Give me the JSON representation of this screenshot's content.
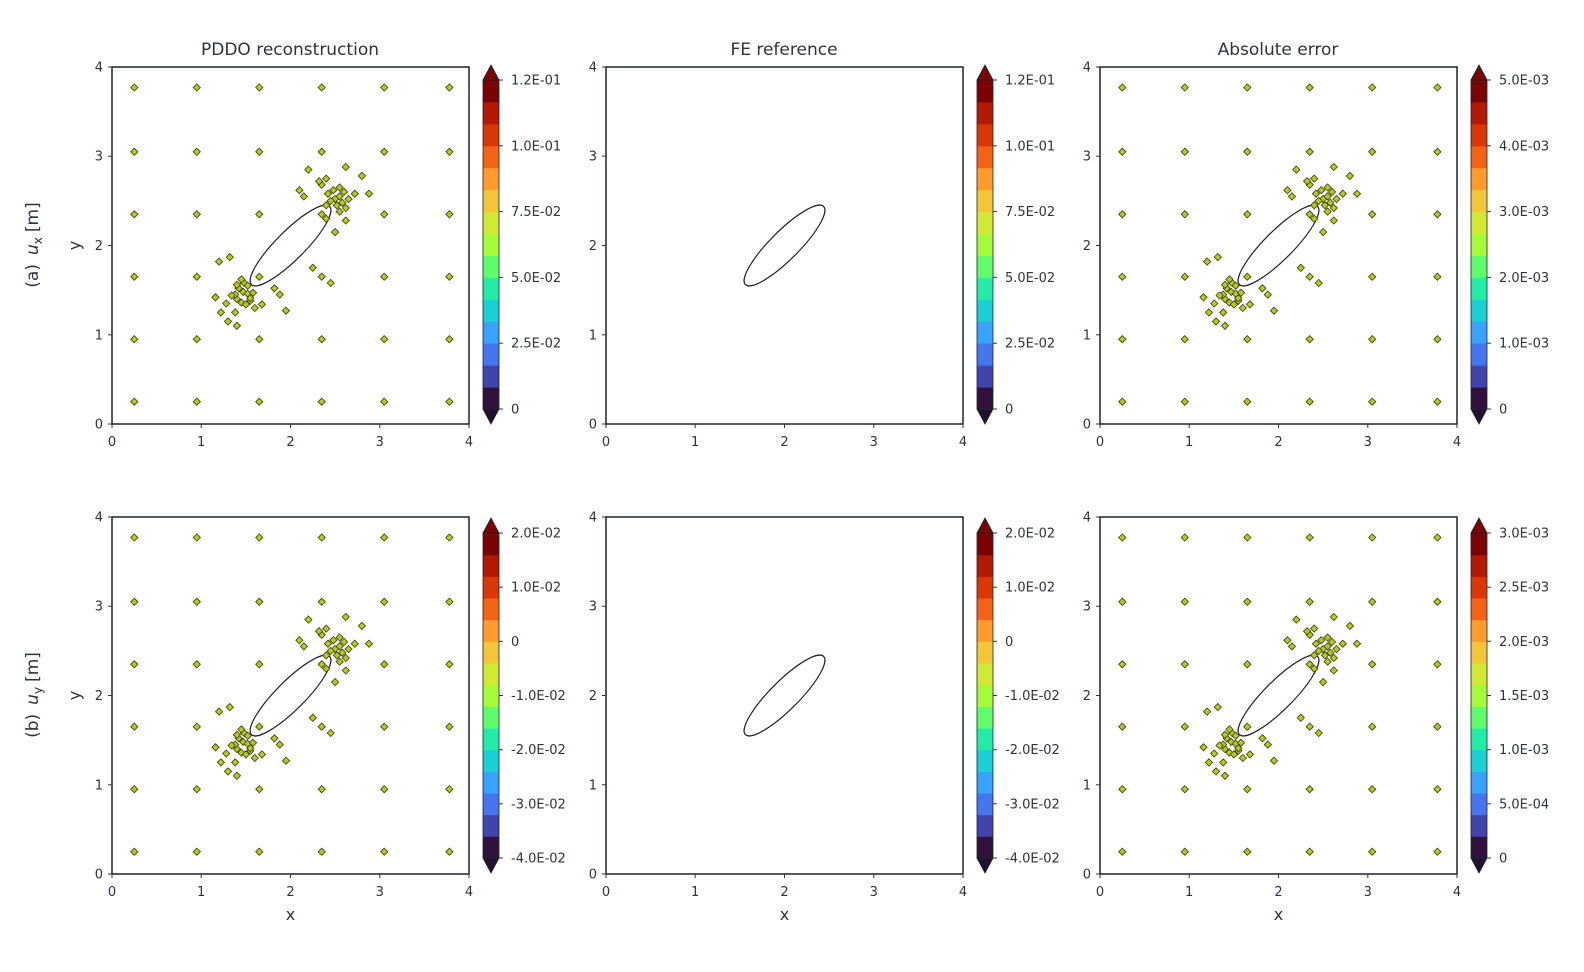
{
  "figure": {
    "column_titles": [
      "PDDO reconstruction",
      "FE reference",
      "Absolute error"
    ],
    "row_labels": [
      {
        "prefix": "(a)",
        "symbol": "u",
        "sub": "x",
        "unit": "[m]"
      },
      {
        "prefix": "(b)",
        "symbol": "u",
        "sub": "y",
        "unit": "[m]"
      }
    ],
    "xlabel": "x",
    "ylabel": "y",
    "colormap": [
      "#30123b",
      "#4145ab",
      "#4675ed",
      "#39a2fc",
      "#1bcfd4",
      "#24eca6",
      "#61fc6c",
      "#a4fc3b",
      "#d1e834",
      "#f3c63a",
      "#fe9b2d",
      "#f36315",
      "#d93806",
      "#b11901",
      "#7a0402"
    ]
  },
  "chart_data": [
    {
      "id": "ux-pddo",
      "type": "heatmap",
      "title": "PDDO reconstruction",
      "row_label": "(a) u_x [m]",
      "field": "ux",
      "xlim": [
        0,
        4
      ],
      "ylim": [
        0,
        4
      ],
      "xticks": [
        "0",
        "1",
        "2",
        "3",
        "4"
      ],
      "yticks": [
        "0",
        "1",
        "2",
        "3",
        "4"
      ],
      "xlabel": "",
      "ylabel": "y",
      "colorbar": {
        "min": 0,
        "max": 0.12,
        "ticks": [
          "0",
          "2.5E-02",
          "5.0E-02",
          "7.5E-02",
          "1.0E-01",
          "1.2E-01"
        ],
        "tick_values": [
          0,
          0.025,
          0.05,
          0.075,
          0.1,
          0.12
        ]
      },
      "hole": {
        "center": [
          2,
          2
        ],
        "semi_axes": [
          0.62,
          0.16
        ],
        "angle_deg": 45
      },
      "show_sensors": true
    },
    {
      "id": "ux-fe",
      "type": "heatmap",
      "title": "FE reference",
      "field": "ux",
      "xlim": [
        0,
        4
      ],
      "ylim": [
        0,
        4
      ],
      "xticks": [
        "0",
        "1",
        "2",
        "3",
        "4"
      ],
      "yticks": [
        "0",
        "1",
        "2",
        "3",
        "4"
      ],
      "xlabel": "",
      "ylabel": "",
      "colorbar": {
        "min": 0,
        "max": 0.12,
        "ticks": [
          "0",
          "2.5E-02",
          "5.0E-02",
          "7.5E-02",
          "1.0E-01",
          "1.2E-01"
        ],
        "tick_values": [
          0,
          0.025,
          0.05,
          0.075,
          0.1,
          0.12
        ]
      },
      "hole": {
        "center": [
          2,
          2
        ],
        "semi_axes": [
          0.62,
          0.16
        ],
        "angle_deg": 45
      },
      "show_sensors": false
    },
    {
      "id": "ux-err",
      "type": "heatmap",
      "title": "Absolute error",
      "field": "err1",
      "xlim": [
        0,
        4
      ],
      "ylim": [
        0,
        4
      ],
      "xticks": [
        "0",
        "1",
        "2",
        "3",
        "4"
      ],
      "yticks": [
        "0",
        "1",
        "2",
        "3",
        "4"
      ],
      "xlabel": "",
      "ylabel": "",
      "colorbar": {
        "min": 0,
        "max": 0.005,
        "ticks": [
          "0",
          "1.0E-03",
          "2.0E-03",
          "3.0E-03",
          "4.0E-03",
          "5.0E-03"
        ],
        "tick_values": [
          0,
          0.001,
          0.002,
          0.003,
          0.004,
          0.005
        ]
      },
      "hole": {
        "center": [
          2,
          2
        ],
        "semi_axes": [
          0.62,
          0.16
        ],
        "angle_deg": 45
      },
      "show_sensors": true
    },
    {
      "id": "uy-pddo",
      "type": "heatmap",
      "title": "",
      "row_label": "(b) u_y [m]",
      "field": "uy",
      "xlim": [
        0,
        4
      ],
      "ylim": [
        0,
        4
      ],
      "xticks": [
        "0",
        "1",
        "2",
        "3",
        "4"
      ],
      "yticks": [
        "0",
        "1",
        "2",
        "3",
        "4"
      ],
      "xlabel": "x",
      "ylabel": "y",
      "colorbar": {
        "min": -0.04,
        "max": 0.02,
        "ticks": [
          "-4.0E-02",
          "-3.0E-02",
          "-2.0E-02",
          "-1.0E-02",
          "0",
          "1.0E-02",
          "2.0E-02"
        ],
        "tick_values": [
          -0.04,
          -0.03,
          -0.02,
          -0.01,
          0,
          0.01,
          0.02
        ]
      },
      "hole": {
        "center": [
          2,
          2
        ],
        "semi_axes": [
          0.62,
          0.16
        ],
        "angle_deg": 45
      },
      "show_sensors": true
    },
    {
      "id": "uy-fe",
      "type": "heatmap",
      "title": "",
      "field": "uy",
      "xlim": [
        0,
        4
      ],
      "ylim": [
        0,
        4
      ],
      "xticks": [
        "0",
        "1",
        "2",
        "3",
        "4"
      ],
      "yticks": [
        "0",
        "1",
        "2",
        "3",
        "4"
      ],
      "xlabel": "x",
      "ylabel": "",
      "colorbar": {
        "min": -0.04,
        "max": 0.02,
        "ticks": [
          "-4.0E-02",
          "-3.0E-02",
          "-2.0E-02",
          "-1.0E-02",
          "0",
          "1.0E-02",
          "2.0E-02"
        ],
        "tick_values": [
          -0.04,
          -0.03,
          -0.02,
          -0.01,
          0,
          0.01,
          0.02
        ]
      },
      "hole": {
        "center": [
          2,
          2
        ],
        "semi_axes": [
          0.62,
          0.16
        ],
        "angle_deg": 45
      },
      "show_sensors": false
    },
    {
      "id": "uy-err",
      "type": "heatmap",
      "title": "",
      "field": "err2",
      "xlim": [
        0,
        4
      ],
      "ylim": [
        0,
        4
      ],
      "xticks": [
        "0",
        "1",
        "2",
        "3",
        "4"
      ],
      "yticks": [
        "0",
        "1",
        "2",
        "3",
        "4"
      ],
      "xlabel": "x",
      "ylabel": "",
      "colorbar": {
        "min": 0,
        "max": 0.003,
        "ticks": [
          "0",
          "5.0E-04",
          "1.0E-03",
          "1.5E-03",
          "2.0E-03",
          "2.5E-03",
          "3.0E-03"
        ],
        "tick_values": [
          0,
          0.0005,
          0.001,
          0.0015,
          0.002,
          0.0025,
          0.003
        ]
      },
      "hole": {
        "center": [
          2,
          2
        ],
        "semi_axes": [
          0.62,
          0.16
        ],
        "angle_deg": 45
      },
      "show_sensors": true
    }
  ],
  "sensors": [
    [
      0.25,
      0.25
    ],
    [
      0.95,
      0.25
    ],
    [
      1.65,
      0.25
    ],
    [
      2.35,
      0.25
    ],
    [
      3.05,
      0.25
    ],
    [
      3.78,
      0.25
    ],
    [
      0.25,
      0.95
    ],
    [
      0.95,
      0.95
    ],
    [
      1.65,
      0.95
    ],
    [
      2.35,
      0.95
    ],
    [
      3.05,
      0.95
    ],
    [
      3.78,
      0.95
    ],
    [
      0.25,
      1.65
    ],
    [
      0.95,
      1.65
    ],
    [
      1.65,
      1.65
    ],
    [
      2.35,
      1.65
    ],
    [
      3.05,
      1.65
    ],
    [
      3.78,
      1.65
    ],
    [
      0.25,
      2.35
    ],
    [
      0.95,
      2.35
    ],
    [
      1.65,
      2.35
    ],
    [
      2.35,
      2.35
    ],
    [
      3.05,
      2.35
    ],
    [
      3.78,
      2.35
    ],
    [
      0.25,
      3.05
    ],
    [
      0.95,
      3.05
    ],
    [
      1.65,
      3.05
    ],
    [
      2.35,
      3.05
    ],
    [
      3.05,
      3.05
    ],
    [
      3.78,
      3.05
    ],
    [
      0.25,
      3.77
    ],
    [
      0.95,
      3.77
    ],
    [
      1.65,
      3.77
    ],
    [
      2.35,
      3.77
    ],
    [
      3.05,
      3.77
    ],
    [
      3.78,
      3.77
    ],
    [
      1.42,
      1.52
    ],
    [
      1.47,
      1.48
    ],
    [
      1.52,
      1.46
    ],
    [
      1.58,
      1.47
    ],
    [
      1.48,
      1.58
    ],
    [
      1.45,
      1.62
    ],
    [
      1.4,
      1.4
    ],
    [
      1.38,
      1.45
    ],
    [
      1.34,
      1.44
    ],
    [
      1.45,
      1.36
    ],
    [
      1.5,
      1.34
    ],
    [
      1.55,
      1.38
    ],
    [
      1.6,
      1.3
    ],
    [
      1.28,
      1.35
    ],
    [
      1.38,
      1.25
    ],
    [
      1.22,
      1.25
    ],
    [
      1.16,
      1.42
    ],
    [
      1.2,
      1.82
    ],
    [
      1.32,
      1.87
    ],
    [
      1.55,
      1.41
    ],
    [
      1.68,
      1.34
    ],
    [
      1.82,
      1.52
    ],
    [
      1.88,
      1.45
    ],
    [
      1.95,
      1.27
    ],
    [
      1.3,
      1.15
    ],
    [
      1.4,
      1.1
    ],
    [
      1.52,
      1.55
    ],
    [
      1.4,
      1.56
    ],
    [
      2.55,
      2.55
    ],
    [
      2.5,
      2.52
    ],
    [
      2.45,
      2.5
    ],
    [
      2.52,
      2.45
    ],
    [
      2.58,
      2.48
    ],
    [
      2.6,
      2.6
    ],
    [
      2.48,
      2.62
    ],
    [
      2.42,
      2.58
    ],
    [
      2.4,
      2.45
    ],
    [
      2.62,
      2.42
    ],
    [
      2.65,
      2.52
    ],
    [
      2.55,
      2.38
    ],
    [
      2.35,
      2.68
    ],
    [
      2.15,
      2.55
    ],
    [
      2.4,
      2.3
    ],
    [
      2.5,
      2.15
    ],
    [
      2.62,
      2.28
    ],
    [
      2.72,
      2.58
    ],
    [
      2.32,
      2.72
    ],
    [
      2.2,
      2.85
    ],
    [
      2.62,
      2.88
    ],
    [
      2.8,
      2.78
    ],
    [
      2.88,
      2.58
    ],
    [
      2.45,
      1.58
    ],
    [
      2.25,
      1.75
    ],
    [
      2.1,
      2.62
    ],
    [
      2.55,
      2.65
    ],
    [
      2.4,
      2.75
    ]
  ]
}
